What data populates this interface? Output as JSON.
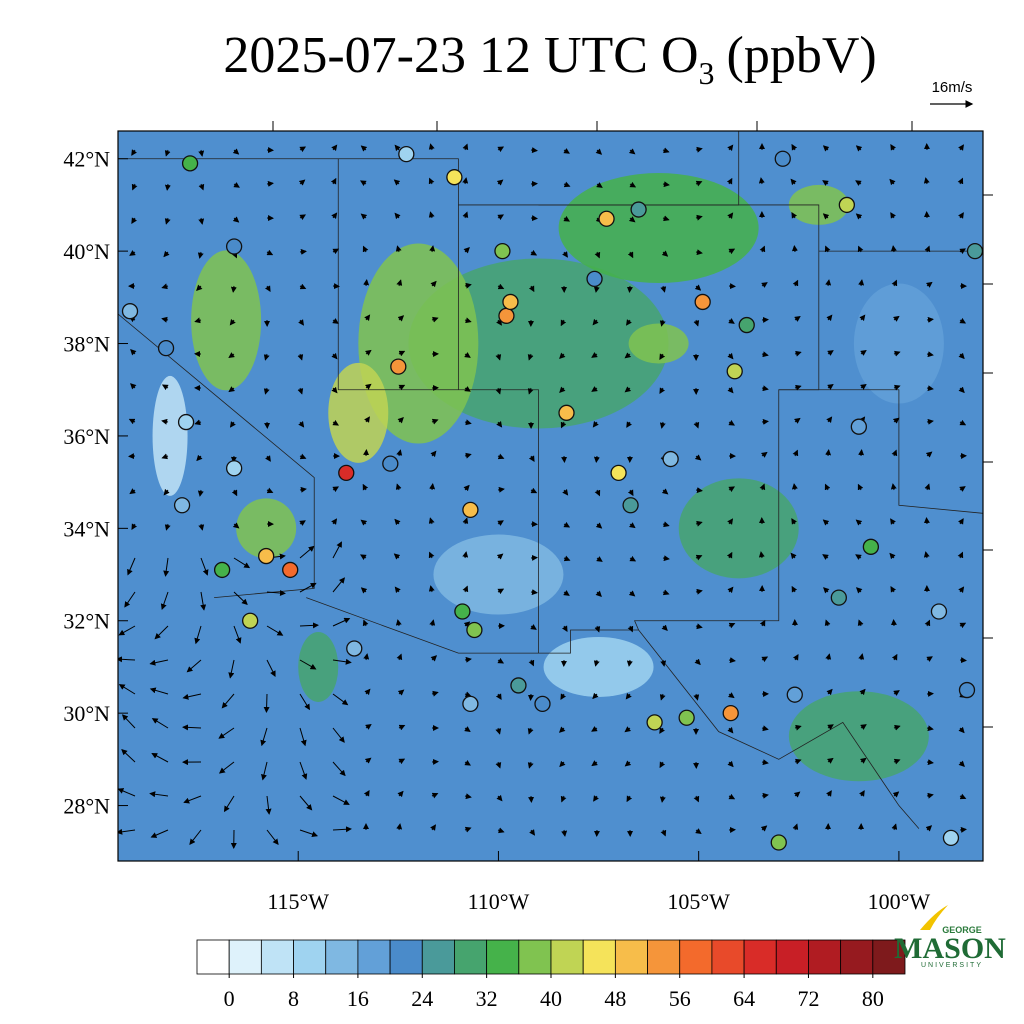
{
  "title": {
    "main": "2025-07-23 12 UTC O",
    "subscript": "3",
    "unit": "(ppbV)"
  },
  "wind_reference": "16m/s",
  "map": {
    "lonlim": [
      -119.5,
      -97.9
    ],
    "latlim": [
      26.8,
      42.6
    ],
    "latticks": [
      {
        "value": 42,
        "label": "42°N"
      },
      {
        "value": 40,
        "label": "40°N"
      },
      {
        "value": 38,
        "label": "38°N"
      },
      {
        "value": 36,
        "label": "36°N"
      },
      {
        "value": 34,
        "label": "34°N"
      },
      {
        "value": 32,
        "label": "32°N"
      },
      {
        "value": 30,
        "label": "30°N"
      },
      {
        "value": 28,
        "label": "28°N"
      }
    ],
    "lonticks": [
      {
        "value": -115,
        "label": "115°W"
      },
      {
        "value": -110,
        "label": "110°W"
      },
      {
        "value": -105,
        "label": "105°W"
      },
      {
        "value": -100,
        "label": "100°W"
      }
    ],
    "stations": [
      {
        "lon": -113.8,
        "lat": 35.2,
        "o3": 66
      },
      {
        "lon": -112.5,
        "lat": 37.5,
        "o3": 54
      },
      {
        "lon": -115.2,
        "lat": 33.1,
        "o3": 58
      },
      {
        "lon": -115.8,
        "lat": 33.4,
        "o3": 48
      },
      {
        "lon": -110.7,
        "lat": 34.4,
        "o3": 50
      },
      {
        "lon": -109.8,
        "lat": 38.6,
        "o3": 54
      },
      {
        "lon": -109.7,
        "lat": 38.9,
        "o3": 48
      },
      {
        "lon": -108.3,
        "lat": 36.5,
        "o3": 48
      },
      {
        "lon": -107.3,
        "lat": 40.7,
        "o3": 48
      },
      {
        "lon": -104.9,
        "lat": 38.9,
        "o3": 54
      },
      {
        "lon": -104.2,
        "lat": 30.0,
        "o3": 54
      },
      {
        "lon": -107.0,
        "lat": 35.2,
        "o3": 46
      },
      {
        "lon": -117.7,
        "lat": 41.9,
        "o3": 34
      },
      {
        "lon": -116.6,
        "lat": 40.1,
        "o3": 22
      },
      {
        "lon": -118.3,
        "lat": 37.9,
        "o3": 20
      },
      {
        "lon": -117.8,
        "lat": 36.3,
        "o3": 8
      },
      {
        "lon": -117.9,
        "lat": 34.5,
        "o3": 14
      },
      {
        "lon": -116.6,
        "lat": 35.3,
        "o3": 10
      },
      {
        "lon": -116.9,
        "lat": 33.1,
        "o3": 32
      },
      {
        "lon": -116.2,
        "lat": 32.0,
        "o3": 40
      },
      {
        "lon": -113.6,
        "lat": 31.4,
        "o3": 14
      },
      {
        "lon": -110.9,
        "lat": 32.2,
        "o3": 34
      },
      {
        "lon": -110.6,
        "lat": 31.8,
        "o3": 36
      },
      {
        "lon": -109.5,
        "lat": 30.6,
        "o3": 26
      },
      {
        "lon": -110.7,
        "lat": 30.2,
        "o3": 12
      },
      {
        "lon": -106.1,
        "lat": 29.8,
        "o3": 40
      },
      {
        "lon": -105.3,
        "lat": 29.9,
        "o3": 38
      },
      {
        "lon": -106.7,
        "lat": 34.5,
        "o3": 24
      },
      {
        "lon": -105.7,
        "lat": 35.5,
        "o3": 12
      },
      {
        "lon": -104.1,
        "lat": 37.4,
        "o3": 40
      },
      {
        "lon": -103.8,
        "lat": 38.4,
        "o3": 30
      },
      {
        "lon": -111.1,
        "lat": 41.6,
        "o3": 44
      },
      {
        "lon": -112.3,
        "lat": 42.1,
        "o3": 10
      },
      {
        "lon": -109.9,
        "lat": 40.0,
        "o3": 36
      },
      {
        "lon": -107.6,
        "lat": 39.4,
        "o3": 22
      },
      {
        "lon": -106.5,
        "lat": 40.9,
        "o3": 26
      },
      {
        "lon": -102.9,
        "lat": 42.0,
        "o3": 22
      },
      {
        "lon": -101.3,
        "lat": 41.0,
        "o3": 42
      },
      {
        "lon": -101.0,
        "lat": 36.2,
        "o3": 18
      },
      {
        "lon": -100.7,
        "lat": 33.6,
        "o3": 32
      },
      {
        "lon": -101.5,
        "lat": 32.5,
        "o3": 24
      },
      {
        "lon": -99.0,
        "lat": 32.2,
        "o3": 14
      },
      {
        "lon": -102.6,
        "lat": 30.4,
        "o3": 18
      },
      {
        "lon": -103.0,
        "lat": 27.2,
        "o3": 38
      },
      {
        "lon": -98.7,
        "lat": 27.3,
        "o3": 10
      },
      {
        "lon": -98.3,
        "lat": 30.5,
        "o3": 20
      },
      {
        "lon": -98.1,
        "lat": 40.0,
        "o3": 24
      },
      {
        "lon": -119.2,
        "lat": 38.7,
        "o3": 14
      },
      {
        "lon": -108.9,
        "lat": 30.2,
        "o3": 20
      },
      {
        "lon": -112.7,
        "lat": 35.4,
        "o3": 22
      }
    ]
  },
  "colorbar": {
    "lim": [
      -4,
      84
    ],
    "ticks": [
      0,
      8,
      16,
      24,
      32,
      40,
      48,
      56,
      64,
      72,
      80
    ],
    "colors": [
      "#ffffff",
      "#def2fb",
      "#bfe3f6",
      "#9fd3f0",
      "#7fb8e2",
      "#62a0d8",
      "#4a8bca",
      "#4a9a9a",
      "#46a46e",
      "#45b24a",
      "#80c350",
      "#c0d454",
      "#f5e35a",
      "#f7bd4a",
      "#f5953a",
      "#f36a2c",
      "#e84a2a",
      "#d92c28",
      "#c81f26",
      "#b01c22",
      "#961a1f",
      "#7e1a1c"
    ]
  },
  "logo": {
    "top": "GEORGE",
    "name": "MASON",
    "bottom": "UNIVERSITY"
  }
}
